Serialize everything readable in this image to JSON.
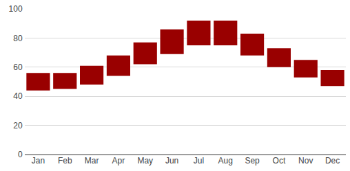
{
  "chart_data": {
    "type": "bar",
    "categories": [
      "Jan",
      "Feb",
      "Mar",
      "Apr",
      "May",
      "Jun",
      "Jul",
      "Aug",
      "Sep",
      "Oct",
      "Nov",
      "Dec"
    ],
    "low": [
      44,
      45,
      48,
      54,
      62,
      69,
      75,
      75,
      68,
      60,
      53,
      47
    ],
    "high": [
      56,
      56,
      61,
      68,
      77,
      86,
      92,
      92,
      83,
      73,
      65,
      58
    ],
    "color": "#990000",
    "ylim": [
      0,
      100
    ],
    "yticks": [
      0,
      20,
      40,
      60,
      80,
      100
    ],
    "grid": true
  }
}
